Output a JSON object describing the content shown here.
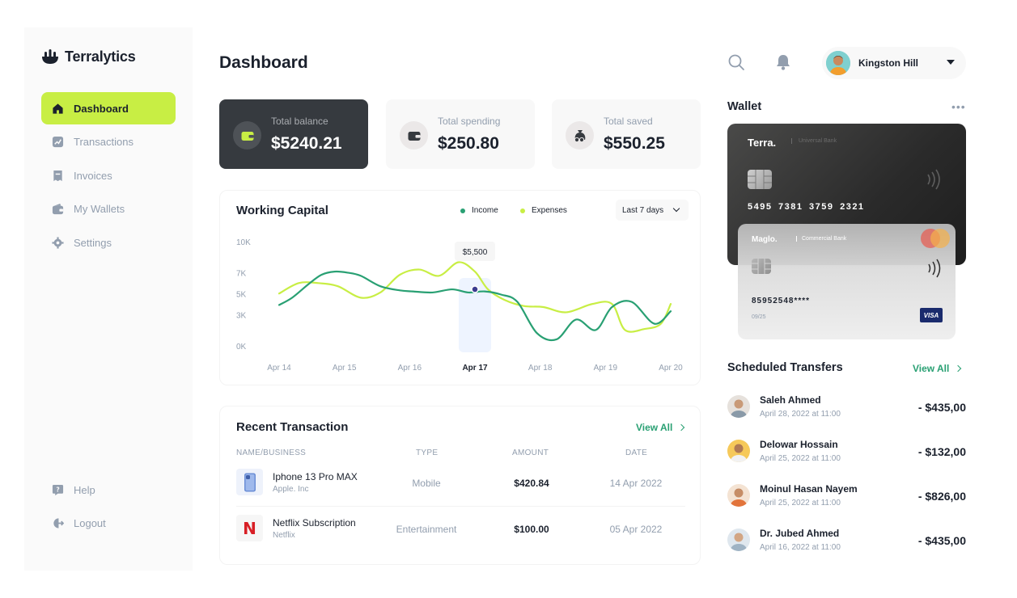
{
  "brand": {
    "name": "Terralytics"
  },
  "sidebar": {
    "items": [
      {
        "label": "Dashboard",
        "icon": "home-icon",
        "active": true
      },
      {
        "label": "Transactions",
        "icon": "chart-icon"
      },
      {
        "label": "Invoices",
        "icon": "invoice-icon"
      },
      {
        "label": "My Wallets",
        "icon": "wallet-icon"
      },
      {
        "label": "Settings",
        "icon": "gear-icon"
      }
    ],
    "bottom": [
      {
        "label": "Help",
        "icon": "help-icon"
      },
      {
        "label": "Logout",
        "icon": "logout-icon"
      }
    ]
  },
  "header": {
    "title": "Dashboard",
    "user_name": "Kingston Hill"
  },
  "stats": [
    {
      "label": "Total balance",
      "value": "$5240.21",
      "icon": "wallet-icon"
    },
    {
      "label": "Total spending",
      "value": "$250.80",
      "icon": "wallet-icon"
    },
    {
      "label": "Total saved",
      "value": "$550.25",
      "icon": "money-icon"
    }
  ],
  "working_capital": {
    "title": "Working Capital",
    "legend_income": "Income",
    "legend_expenses": "Expenses",
    "range": "Last 7 days",
    "tooltip": "$5,500"
  },
  "chart_data": {
    "type": "line",
    "title": "Working Capital",
    "x": [
      "Apr 14",
      "Apr 15",
      "Apr 16",
      "Apr 17",
      "Apr 18",
      "Apr 19",
      "Apr 20"
    ],
    "y_ticks": [
      "10K",
      "7K",
      "5K",
      "3K",
      "0K"
    ],
    "highlight_x": "Apr 17",
    "legend": "top",
    "grid": false,
    "series": [
      {
        "name": "Income",
        "color": "#29a073",
        "x": [
          0,
          0.2,
          0.45,
          0.65,
          0.85,
          1.05,
          1.25,
          1.55,
          1.85,
          2.05,
          2.35,
          2.65,
          2.9,
          3.15,
          3.4,
          3.65,
          3.95,
          4.25,
          4.55,
          4.85,
          5.1,
          5.4,
          5.75,
          6
        ],
        "y": [
          4,
          4.7,
          6,
          6.9,
          7.2,
          7.1,
          6.8,
          5.8,
          5.4,
          5.3,
          5.2,
          5.5,
          5.2,
          5.3,
          5,
          4.3,
          1.3,
          0.7,
          2.6,
          1.6,
          3.8,
          4.3,
          2.2,
          3.4
        ]
      },
      {
        "name": "Expenses",
        "color": "#c8ee44",
        "x": [
          0,
          0.3,
          0.6,
          0.9,
          1.25,
          1.55,
          1.85,
          2.15,
          2.45,
          2.75,
          3,
          3.2,
          3.45,
          3.75,
          4.05,
          4.4,
          4.8,
          5.1,
          5.3,
          5.6,
          5.85,
          6
        ],
        "y": [
          5.1,
          6.1,
          6.1,
          5.8,
          4.7,
          5.2,
          6.9,
          7.4,
          6.8,
          8.1,
          7.2,
          5.5,
          4.5,
          3.9,
          3.8,
          3.3,
          4.1,
          4.1,
          1.6,
          1.7,
          2.2,
          4.1
        ]
      }
    ],
    "marker": {
      "x": 3,
      "y": 5.5,
      "label": "$5,500"
    }
  },
  "recent_transactions": {
    "title": "Recent Transaction",
    "view_all": "View All",
    "columns": [
      "NAME/BUSINESS",
      "TYPE",
      "AMOUNT",
      "DATE"
    ],
    "rows": [
      {
        "name": "Iphone 13 Pro MAX",
        "business": "Apple. Inc",
        "type": "Mobile",
        "amount": "$420.84",
        "date": "14 Apr 2022",
        "icon": "phone-icon"
      },
      {
        "name": "Netflix Subscription",
        "business": "Netflix",
        "type": "Entertainment",
        "amount": "$100.00",
        "date": "05 Apr 2022",
        "icon": "netflix-logo-icon",
        "logo_letter": "N"
      }
    ]
  },
  "wallet": {
    "title": "Wallet",
    "more": "•••",
    "cards": [
      {
        "brand": "Terra.",
        "bank": "Universal Bank",
        "number": "5495 7381 3759 2321"
      },
      {
        "brand": "Maglo.",
        "bank": "Commercial Bank",
        "number": "85952548****",
        "expiry": "09/25",
        "network": "VISA"
      }
    ]
  },
  "scheduled_transfers": {
    "title": "Scheduled Transfers",
    "view_all": "View All",
    "items": [
      {
        "name": "Saleh Ahmed",
        "date": "April 28, 2022 at 11:00",
        "amount": "- $435,00"
      },
      {
        "name": "Delowar Hossain",
        "date": "April 25, 2022 at 11:00",
        "amount": "- $132,00"
      },
      {
        "name": "Moinul Hasan Nayem",
        "date": "April 25, 2022 at 11:00",
        "amount": "- $826,00"
      },
      {
        "name": "Dr. Jubed Ahmed",
        "date": "April 16, 2022 at 11:00",
        "amount": "- $435,00"
      }
    ]
  }
}
